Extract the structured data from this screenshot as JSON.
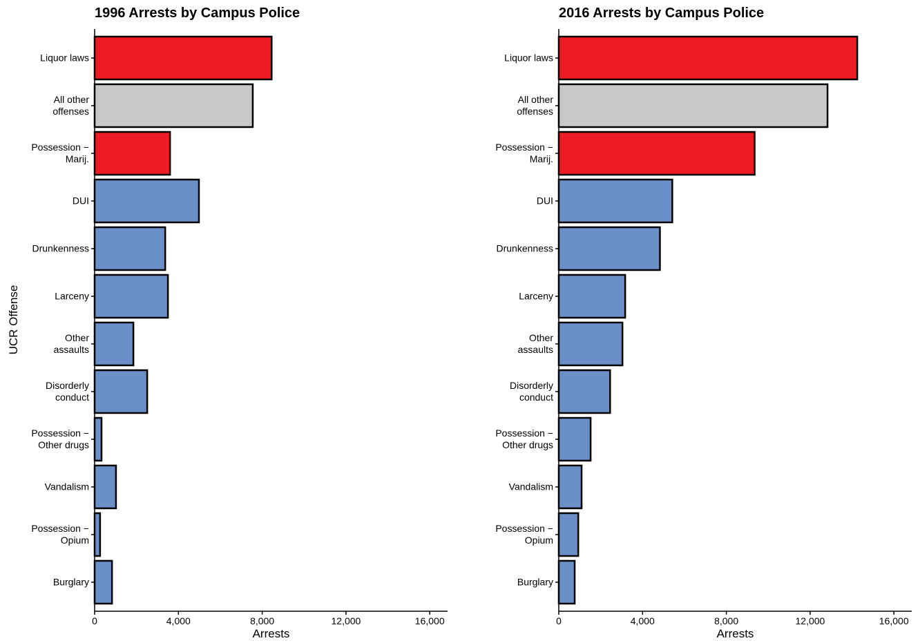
{
  "chart_data": [
    {
      "type": "bar",
      "orientation": "horizontal",
      "title": "1996 Arrests by Campus Police",
      "x_label": "Arrests",
      "y_label": "UCR Offense",
      "categories": [
        "Liquor laws",
        "All other\noffenses",
        "Possession −\nMarij.",
        "DUI",
        "Drunkenness",
        "Larceny",
        "Other\nassaults",
        "Disorderly\nconduct",
        "Possession −\nOther drugs",
        "Vandalism",
        "Possession −\nOpium",
        "Burglary"
      ],
      "values": [
        8450,
        7550,
        3600,
        4980,
        3370,
        3500,
        1850,
        2510,
        330,
        1020,
        260,
        830
      ],
      "colors": [
        "#ed1c24",
        "#c8c8c8",
        "#ed1c24",
        "#6a8ec8",
        "#6a8ec8",
        "#6a8ec8",
        "#6a8ec8",
        "#6a8ec8",
        "#6a8ec8",
        "#6a8ec8",
        "#6a8ec8",
        "#6a8ec8"
      ],
      "xlim": [
        0,
        16850
      ],
      "xticks": [
        0,
        {
          "value": 4000,
          "label": "4,000"
        },
        {
          "value": 8000,
          "label": "8,000"
        },
        {
          "value": 12000,
          "label": "12,000"
        },
        {
          "value": 16000,
          "label": "16,000"
        }
      ]
    },
    {
      "type": "bar",
      "orientation": "horizontal",
      "title": "2016 Arrests by Campus Police",
      "x_label": "Arrests",
      "categories": [
        "Liquor laws",
        "All other\noffenses",
        "Possession −\nMarij.",
        "DUI",
        "Drunkenness",
        "Larceny",
        "Other\nassaults",
        "Disorderly\nconduct",
        "Possession −\nOther drugs",
        "Vandalism",
        "Possession −\nOpium",
        "Burglary"
      ],
      "values": [
        14250,
        12830,
        9350,
        5420,
        4830,
        3170,
        3040,
        2450,
        1520,
        1090,
        930,
        760
      ],
      "colors": [
        "#ed1c24",
        "#c8c8c8",
        "#ed1c24",
        "#6a8ec8",
        "#6a8ec8",
        "#6a8ec8",
        "#6a8ec8",
        "#6a8ec8",
        "#6a8ec8",
        "#6a8ec8",
        "#6a8ec8",
        "#6a8ec8"
      ],
      "xlim": [
        0,
        16850
      ],
      "xticks": [
        0,
        {
          "value": 4000,
          "label": "4,000"
        },
        {
          "value": 8000,
          "label": "8,000"
        },
        {
          "value": 12000,
          "label": "12,000"
        },
        {
          "value": 16000,
          "label": "16,000"
        }
      ]
    }
  ]
}
